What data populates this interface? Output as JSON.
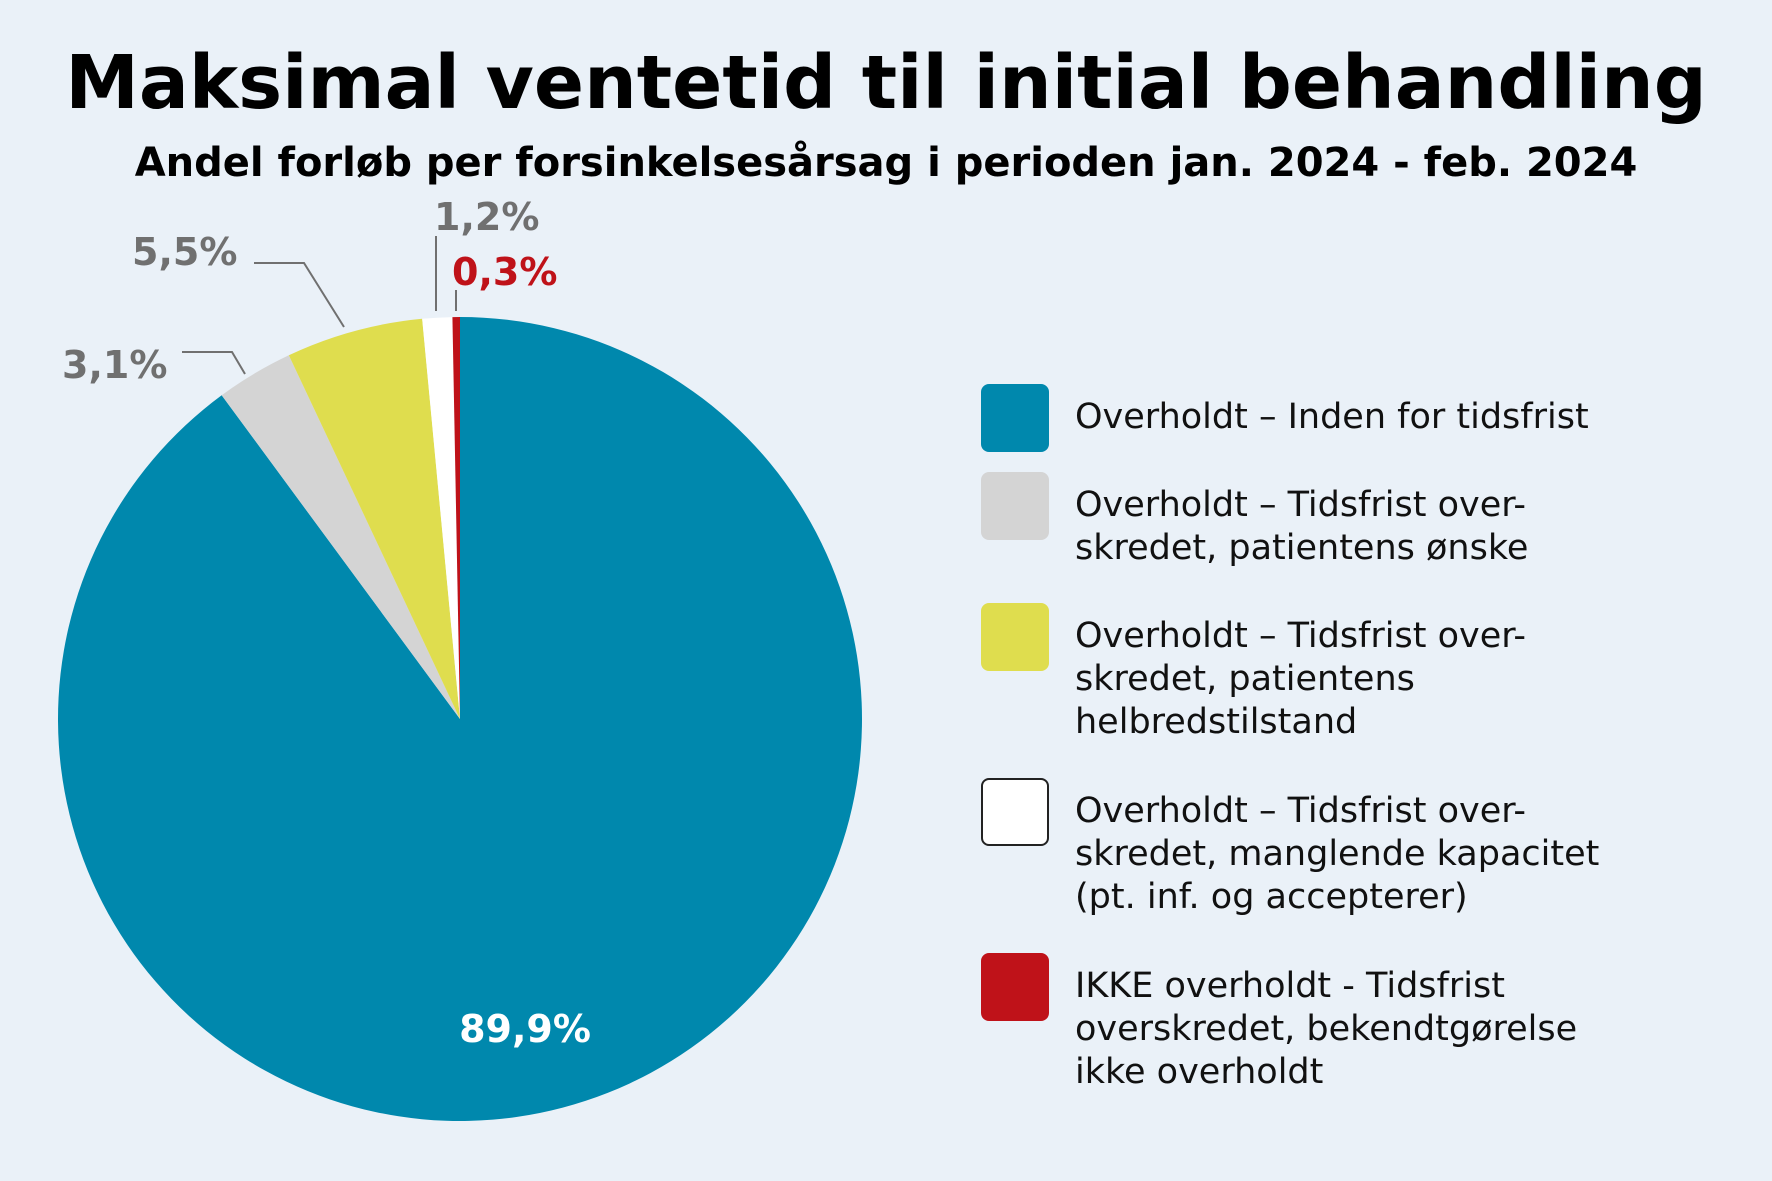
{
  "chart_data": {
    "type": "pie",
    "title": "Maksimal ventetid til initial behandling",
    "subtitle": "Andel forløb per forsinkelsesårsag i perioden jan. 2024 - feb. 2024",
    "slices": [
      {
        "label": "Overholdt – Inden for tidsfrist",
        "value": 89.9,
        "data_label": "89,9%",
        "color": "#0088ad",
        "label_color": "#ffffff"
      },
      {
        "label": "Overholdt – Tidsfrist over-\nskredet, patientens ønske",
        "value": 3.1,
        "data_label": "3,1%",
        "color": "#d4d4d4",
        "label_color": "#707070"
      },
      {
        "label": "Overholdt – Tidsfrist over-\nskredet, patientens\nhelbredstilstand",
        "value": 5.5,
        "data_label": "5,5%",
        "color": "#dfdd4e",
        "label_color": "#707070"
      },
      {
        "label": "Overholdt – Tidsfrist over-\nskredet, manglende kapacitet\n(pt. inf. og accepterer)",
        "value": 1.2,
        "data_label": "1,2%",
        "color": "#ffffff",
        "label_color": "#707070"
      },
      {
        "label": "IKKE overholdt - Tidsfrist\noverskredet, bekendtgørelse\nikke overholdt",
        "value": 0.3,
        "data_label": "0,3%",
        "color": "#bf1219",
        "label_color": "#bf1219"
      }
    ],
    "legend_position": "right"
  }
}
